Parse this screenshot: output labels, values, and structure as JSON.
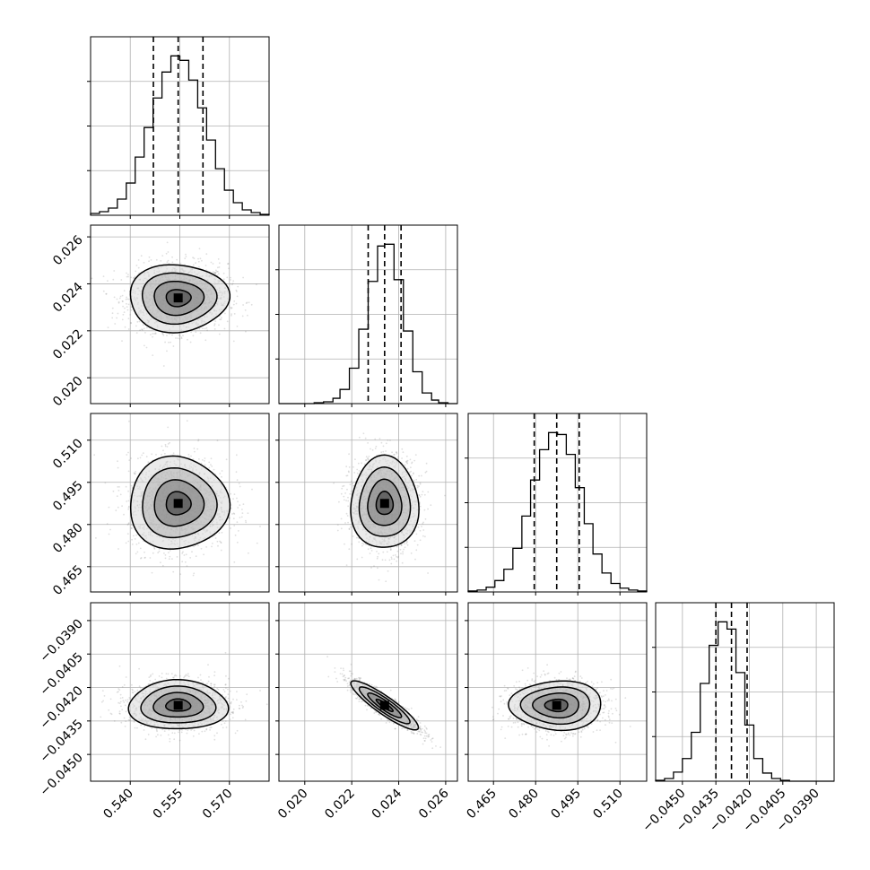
{
  "chart_data": {
    "type": "corner",
    "title": "",
    "parameters": [
      {
        "index": 0,
        "range": [
          0.528,
          0.582
        ],
        "ticks": [
          0.54,
          0.555,
          0.57
        ],
        "tick_labels": [
          "0.540",
          "0.555",
          "0.570"
        ],
        "mean": 0.5545,
        "std": 0.0075,
        "quantiles": [
          0.547,
          0.5545,
          0.562
        ]
      },
      {
        "index": 1,
        "range": [
          0.0189,
          0.0265
        ],
        "ticks": [
          0.02,
          0.022,
          0.024,
          0.026
        ],
        "tick_labels": [
          "0.020",
          "0.022",
          "0.024",
          "0.026"
        ],
        "mean": 0.0234,
        "std": 0.00072,
        "quantiles": [
          0.0227,
          0.0234,
          0.0241
        ]
      },
      {
        "index": 2,
        "range": [
          0.456,
          0.5195
        ],
        "ticks": [
          0.465,
          0.48,
          0.495,
          0.51
        ],
        "tick_labels": [
          "0.465",
          "0.480",
          "0.495",
          "0.510"
        ],
        "mean": 0.4875,
        "std": 0.0082,
        "quantiles": [
          0.4795,
          0.4875,
          0.4955
        ]
      },
      {
        "index": 3,
        "range": [
          -0.0462,
          -0.0382
        ],
        "ticks": [
          -0.045,
          -0.0435,
          -0.042,
          -0.0405,
          -0.039
        ],
        "tick_labels": [
          "−0.0450",
          "−0.0435",
          "−0.0420",
          "−0.0405",
          "−0.0390"
        ],
        "mean": -0.0428,
        "std": 0.00055,
        "quantiles": [
          -0.0435,
          -0.0428,
          -0.0421
        ]
      }
    ],
    "histograms": [
      {
        "param": 0,
        "bin_edges": [
          0.528,
          0.5307,
          0.5334,
          0.5361,
          0.5388,
          0.5415,
          0.5442,
          0.5469,
          0.5496,
          0.5523,
          0.555,
          0.5577,
          0.5604,
          0.5631,
          0.5658,
          0.5685,
          0.5712,
          0.5739,
          0.5766,
          0.5793,
          0.582
        ],
        "counts": [
          2,
          4,
          8,
          18,
          36,
          65,
          98,
          131,
          160,
          178,
          173,
          151,
          120,
          84,
          52,
          28,
          14,
          6,
          3,
          1
        ]
      },
      {
        "param": 1,
        "bin_edges": [
          0.0189,
          0.0192,
          0.0196,
          0.02,
          0.0204,
          0.0208,
          0.0212,
          0.0215,
          0.0219,
          0.0223,
          0.0227,
          0.0231,
          0.0234,
          0.0238,
          0.0242,
          0.0246,
          0.025,
          0.0254,
          0.0257,
          0.0261,
          0.0265
        ],
        "counts": [
          0,
          0,
          0,
          0,
          1,
          2,
          6,
          16,
          40,
          84,
          138,
          178,
          180,
          140,
          82,
          36,
          12,
          4,
          1,
          0
        ]
      },
      {
        "param": 2,
        "bin_edges": [
          0.456,
          0.4592,
          0.4624,
          0.4655,
          0.4687,
          0.4719,
          0.4751,
          0.4782,
          0.4814,
          0.4846,
          0.4878,
          0.4909,
          0.4941,
          0.4973,
          0.5004,
          0.5036,
          0.5068,
          0.51,
          0.5131,
          0.5163,
          0.5195
        ],
        "counts": [
          1,
          2,
          5,
          12,
          24,
          46,
          80,
          118,
          150,
          168,
          166,
          145,
          110,
          72,
          40,
          20,
          9,
          4,
          2,
          1
        ]
      },
      {
        "param": 3,
        "bin_edges": [
          -0.0462,
          -0.0458,
          -0.0454,
          -0.045,
          -0.0446,
          -0.0442,
          -0.0438,
          -0.0434,
          -0.043,
          -0.0426,
          -0.0422,
          -0.0418,
          -0.0414,
          -0.041,
          -0.0406,
          -0.0402,
          -0.0398,
          -0.0394,
          -0.039,
          -0.0386,
          -0.0382
        ],
        "counts": [
          1,
          3,
          10,
          25,
          54,
          108,
          150,
          176,
          168,
          120,
          62,
          25,
          9,
          3,
          1,
          0,
          0,
          0,
          0,
          0
        ]
      }
    ],
    "correlations": [
      {
        "pair": [
          0,
          1
        ],
        "rho": 0.0
      },
      {
        "pair": [
          0,
          2
        ],
        "rho": 0.0
      },
      {
        "pair": [
          1,
          2
        ],
        "rho": 0.0
      },
      {
        "pair": [
          0,
          3
        ],
        "rho": 0.0
      },
      {
        "pair": [
          1,
          3
        ],
        "rho": -0.9
      },
      {
        "pair": [
          2,
          3
        ],
        "rho": 0.0
      }
    ],
    "contour_levels_sigma": [
      0.5,
      1.0,
      1.5,
      2.0
    ],
    "grid": true
  }
}
